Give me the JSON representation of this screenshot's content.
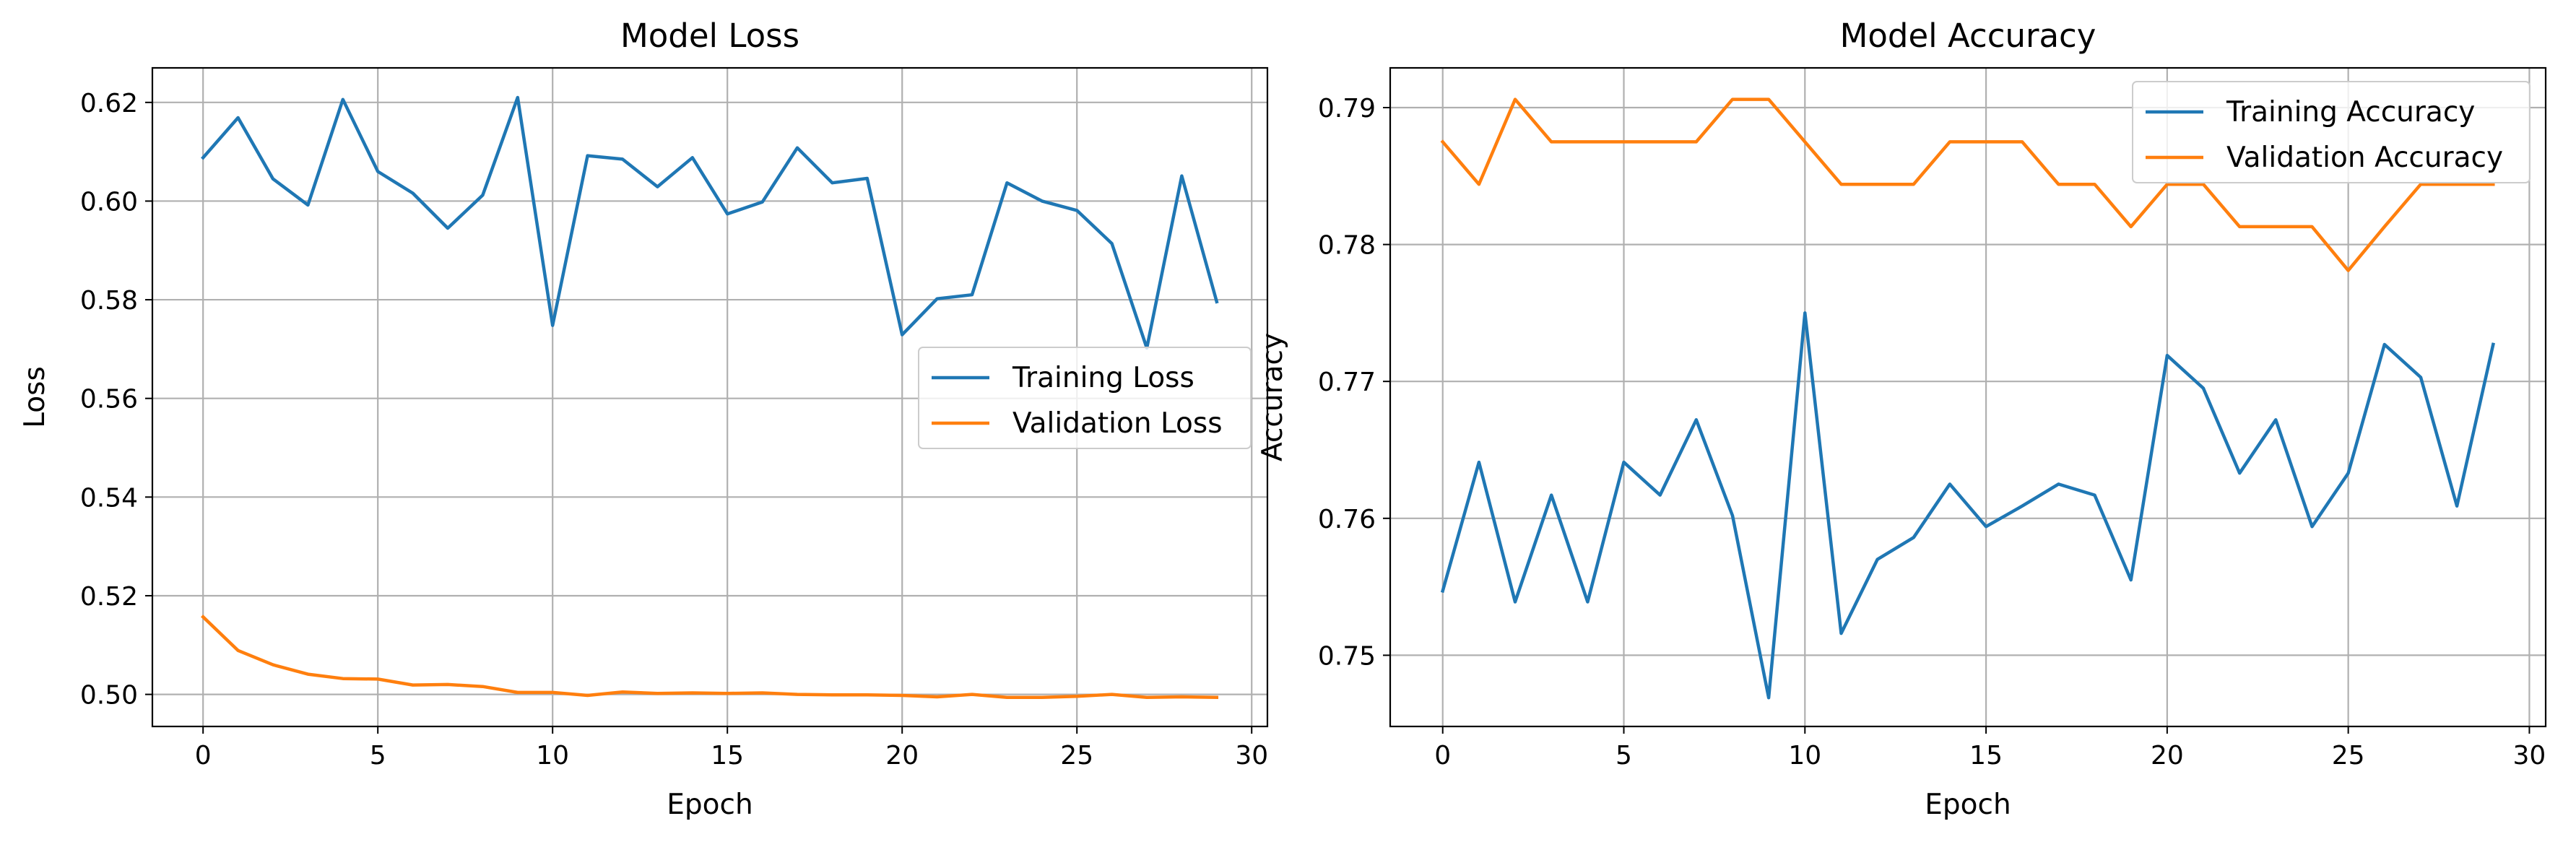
{
  "chart_data": [
    {
      "type": "line",
      "title": "Model Loss",
      "xlabel": "Epoch",
      "ylabel": "Loss",
      "xlim": [
        -1.45,
        30.45
      ],
      "ylim": [
        0.4935,
        0.627
      ],
      "xticks": [
        0,
        5,
        10,
        15,
        20,
        25,
        30
      ],
      "xtick_labels": [
        "0",
        "5",
        "10",
        "15",
        "20",
        "25",
        "30"
      ],
      "yticks": [
        0.5,
        0.52,
        0.54,
        0.56,
        0.58,
        0.6,
        0.62
      ],
      "ytick_labels": [
        "0.50",
        "0.52",
        "0.54",
        "0.56",
        "0.58",
        "0.60",
        "0.62"
      ],
      "grid": true,
      "legend": "center right",
      "x": [
        0,
        1,
        2,
        3,
        4,
        5,
        6,
        7,
        8,
        9,
        10,
        11,
        12,
        13,
        14,
        15,
        16,
        17,
        18,
        19,
        20,
        21,
        22,
        23,
        24,
        25,
        26,
        27,
        28,
        29
      ],
      "series": [
        {
          "name": "Training Loss",
          "color": "#1f77b4",
          "values": [
            0.6088,
            0.6169,
            0.6045,
            0.5992,
            0.6206,
            0.606,
            0.6016,
            0.5945,
            0.6012,
            0.621,
            0.5748,
            0.6092,
            0.6085,
            0.6029,
            0.6088,
            0.5974,
            0.5998,
            0.6108,
            0.6037,
            0.6046,
            0.5729,
            0.5802,
            0.581,
            0.6037,
            0.6,
            0.5981,
            0.5914,
            0.5702,
            0.6051,
            0.5796
          ]
        },
        {
          "name": "Validation Loss",
          "color": "#ff7f0e",
          "values": [
            0.5157,
            0.5089,
            0.506,
            0.5041,
            0.5032,
            0.5031,
            0.5019,
            0.502,
            0.5016,
            0.5004,
            0.5004,
            0.4998,
            0.5005,
            0.5002,
            0.5003,
            0.5002,
            0.5003,
            0.5,
            0.4999,
            0.4999,
            0.4998,
            0.4995,
            0.5,
            0.4994,
            0.4994,
            0.4996,
            0.5,
            0.4994,
            0.4995,
            0.4994
          ]
        }
      ]
    },
    {
      "type": "line",
      "title": "Model Accuracy",
      "xlabel": "Epoch",
      "ylabel": "Accuracy",
      "xlim": [
        -1.45,
        30.45
      ],
      "ylim": [
        0.7448,
        0.7929
      ],
      "xticks": [
        0,
        5,
        10,
        15,
        20,
        25,
        30
      ],
      "xtick_labels": [
        "0",
        "5",
        "10",
        "15",
        "20",
        "25",
        "30"
      ],
      "yticks": [
        0.75,
        0.76,
        0.77,
        0.78,
        0.79
      ],
      "ytick_labels": [
        "0.75",
        "0.76",
        "0.77",
        "0.78",
        "0.79"
      ],
      "grid": true,
      "legend": "upper right",
      "x": [
        0,
        1,
        2,
        3,
        4,
        5,
        6,
        7,
        8,
        9,
        10,
        11,
        12,
        13,
        14,
        15,
        16,
        17,
        18,
        19,
        20,
        21,
        22,
        23,
        24,
        25,
        26,
        27,
        28,
        29
      ],
      "series": [
        {
          "name": "Training Accuracy",
          "color": "#1f77b4",
          "values": [
            0.7547,
            0.7641,
            0.7539,
            0.7617,
            0.7539,
            0.7641,
            0.7617,
            0.7672,
            0.7602,
            0.7469,
            0.775,
            0.7516,
            0.757,
            0.7586,
            0.7625,
            0.7594,
            0.7609,
            0.7625,
            0.7617,
            0.7555,
            0.7719,
            0.7695,
            0.7633,
            0.7672,
            0.7594,
            0.7633,
            0.7727,
            0.7703,
            0.7609,
            0.7727
          ]
        },
        {
          "name": "Validation Accuracy",
          "color": "#ff7f0e",
          "values": [
            0.7875,
            0.7844,
            0.7906,
            0.7875,
            0.7875,
            0.7875,
            0.7875,
            0.7875,
            0.7906,
            0.7906,
            0.7875,
            0.7844,
            0.7844,
            0.7844,
            0.7875,
            0.7875,
            0.7875,
            0.7844,
            0.7844,
            0.7813,
            0.7844,
            0.7844,
            0.7813,
            0.7813,
            0.7813,
            0.7781,
            0.7813,
            0.7844,
            0.7844,
            0.7844
          ]
        }
      ]
    }
  ]
}
